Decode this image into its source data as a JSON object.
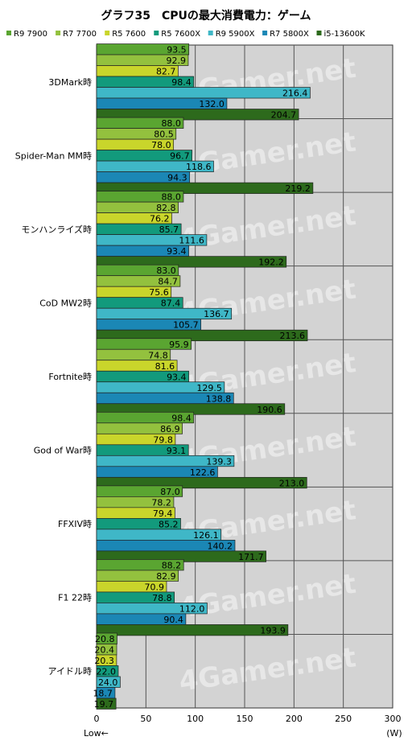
{
  "chart_data": {
    "type": "bar",
    "orientation": "horizontal",
    "title": "グラフ35　CPUの最大消費電力：ゲーム",
    "xlim": [
      0,
      300
    ],
    "x_ticks": [
      "0",
      "50",
      "100",
      "150",
      "200",
      "250",
      "300"
    ],
    "x_unit": "(W)",
    "x_note": "Low←",
    "grid": true,
    "legend_position": "top",
    "categories": [
      "3DMark時",
      "Spider-Man MM時",
      "モンハンライズ時",
      "CoD MW2時",
      "Fortnite時",
      "God of War時",
      "FFXIV時",
      "F1 22時",
      "アイドル時"
    ],
    "series": [
      {
        "name": "R9 7900",
        "color": "#5aa531",
        "values": [
          93.5,
          88.0,
          88.0,
          83.0,
          95.9,
          98.4,
          87.0,
          88.2,
          20.8
        ]
      },
      {
        "name": "R7 7700",
        "color": "#93c13e",
        "values": [
          92.9,
          80.5,
          82.8,
          84.7,
          74.8,
          86.9,
          78.2,
          82.9,
          20.4
        ]
      },
      {
        "name": "R5 7600",
        "color": "#c9d52b",
        "values": [
          82.7,
          78.0,
          76.2,
          75.6,
          81.6,
          79.8,
          79.4,
          70.9,
          20.3
        ]
      },
      {
        "name": "R5 7600X",
        "color": "#129a7c",
        "values": [
          98.4,
          96.7,
          85.7,
          87.4,
          93.4,
          93.1,
          85.2,
          78.8,
          22.0
        ]
      },
      {
        "name": "R9 5900X",
        "color": "#3fb7c7",
        "values": [
          216.4,
          118.6,
          111.6,
          136.7,
          129.5,
          139.3,
          126.1,
          112.0,
          24.0
        ]
      },
      {
        "name": "R7 5800X",
        "color": "#1b87b5",
        "values": [
          132.0,
          94.3,
          93.4,
          105.7,
          138.8,
          122.6,
          140.2,
          90.4,
          18.7
        ]
      },
      {
        "name": "i5-13600K",
        "color": "#2d6a1c",
        "values": [
          204.7,
          219.2,
          192.2,
          213.6,
          190.6,
          213.0,
          171.7,
          193.9,
          19.7
        ]
      }
    ],
    "watermark": "4Gamer.net"
  }
}
